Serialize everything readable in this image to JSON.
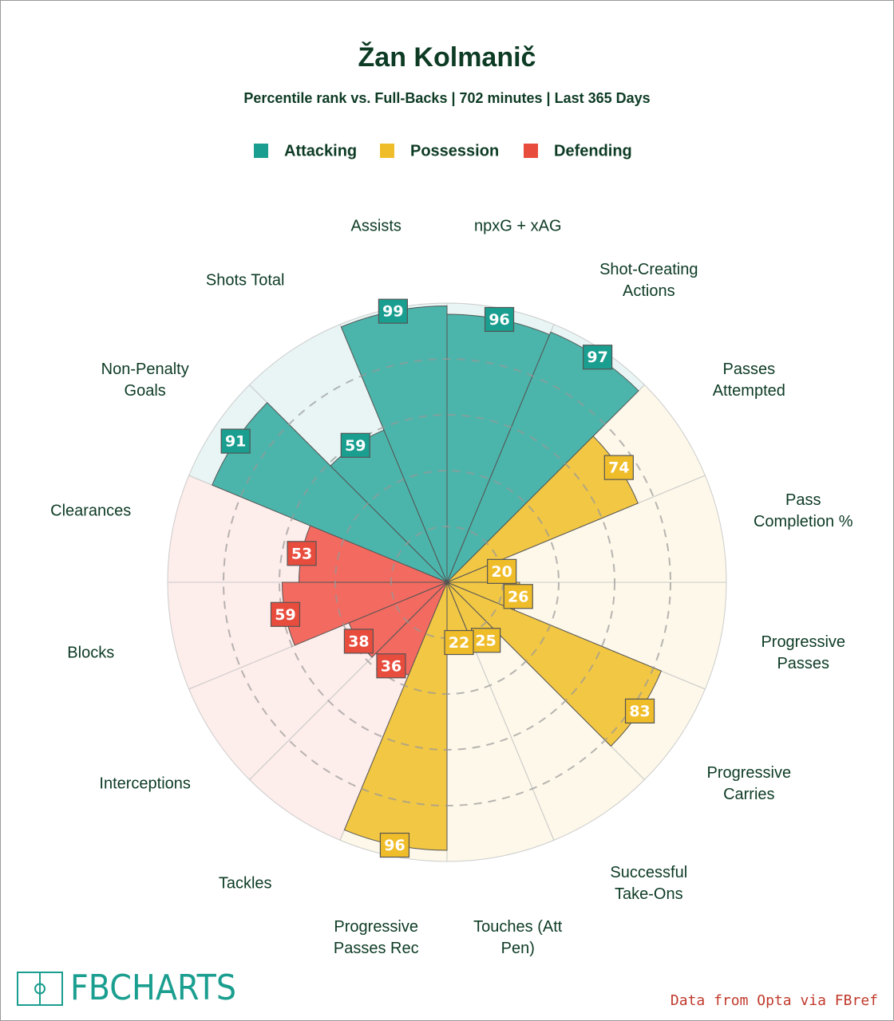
{
  "chart_data": {
    "type": "polar_bar",
    "title": "Žan Kolmanič",
    "subtitle": "Percentile rank vs. Full-Backs | 702 minutes | Last 365 Days",
    "rlim": [
      0,
      100
    ],
    "rticks": [
      20,
      40,
      60,
      80
    ],
    "series": [
      {
        "name": "Attacking",
        "color": "#1a9e8f",
        "fill": "#4bb5ab",
        "categories": [
          "Non-Penalty Goals",
          "Shots Total",
          "Assists",
          "npxG + xAG",
          "Shot-Creating Actions"
        ],
        "values": [
          91,
          59,
          99,
          96,
          97
        ]
      },
      {
        "name": "Possession",
        "color": "#f0bd2a",
        "fill": "#f2c744",
        "categories": [
          "Passes Attempted",
          "Pass Completion %",
          "Progressive Passes",
          "Progressive Carries",
          "Successful Take-Ons",
          "Touches (Att Pen)",
          "Progressive Passes Rec"
        ],
        "values": [
          74,
          20,
          26,
          83,
          25,
          22,
          96
        ]
      },
      {
        "name": "Defending",
        "color": "#e84c3d",
        "fill": "#f26a60",
        "categories": [
          "Tackles",
          "Interceptions",
          "Blocks",
          "Clearances"
        ],
        "values": [
          36,
          38,
          59,
          53
        ]
      }
    ],
    "logo": "FBCHARTS",
    "source": "Data from Opta via FBref"
  }
}
